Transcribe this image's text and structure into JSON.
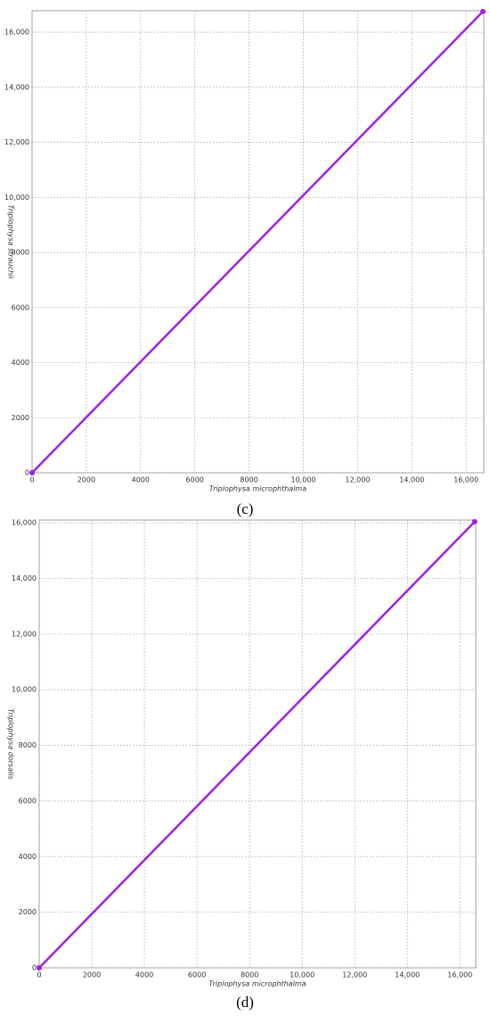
{
  "chart_data": [
    {
      "type": "line",
      "caption": "(c)",
      "x_label": "Triplophysa microphthalma",
      "y_label": "Triplophysa strauchii",
      "x": [
        0,
        16620
      ],
      "series": [
        {
          "name": null,
          "color": "#a020e0",
          "values": [
            0,
            16750
          ]
        }
      ],
      "xlim": [
        0,
        16650
      ],
      "ylim": [
        0,
        16780
      ],
      "grid": true,
      "xticks": [
        0,
        2000,
        4000,
        6000,
        8000,
        {
          "value": 10000,
          "label": "10,000"
        },
        {
          "value": 12000,
          "label": "12,000"
        },
        {
          "value": 14000,
          "label": "14,000"
        },
        {
          "value": 16000,
          "label": "16,000"
        }
      ],
      "yticks": [
        0,
        2000,
        4000,
        6000,
        8000,
        {
          "value": 10000,
          "label": "10,000"
        },
        {
          "value": 12000,
          "label": "12,000"
        },
        {
          "value": 14000,
          "label": "14,000"
        },
        {
          "value": 16000,
          "label": "16,000"
        }
      ]
    },
    {
      "type": "line",
      "caption": "(d)",
      "x_label": "Triplophysa microphthalma",
      "y_label": "Triplophysa dorsalis",
      "x": [
        0,
        16560
      ],
      "series": [
        {
          "name": null,
          "color": "#a020e0",
          "values": [
            0,
            16040
          ]
        }
      ],
      "xlim": [
        0,
        16600
      ],
      "ylim": [
        0,
        16100
      ],
      "grid": true,
      "xticks": [
        0,
        2000,
        4000,
        6000,
        8000,
        {
          "value": 10000,
          "label": "10,000"
        },
        {
          "value": 12000,
          "label": "12,000"
        },
        {
          "value": 14000,
          "label": "14,000"
        },
        {
          "value": 16000,
          "label": "16,000"
        }
      ],
      "yticks": [
        0,
        2000,
        4000,
        6000,
        8000,
        {
          "value": 10000,
          "label": "10,000"
        },
        {
          "value": 12000,
          "label": "12,000"
        },
        {
          "value": 14000,
          "label": "14,000"
        },
        {
          "value": 16000,
          "label": "16,000"
        }
      ]
    }
  ]
}
